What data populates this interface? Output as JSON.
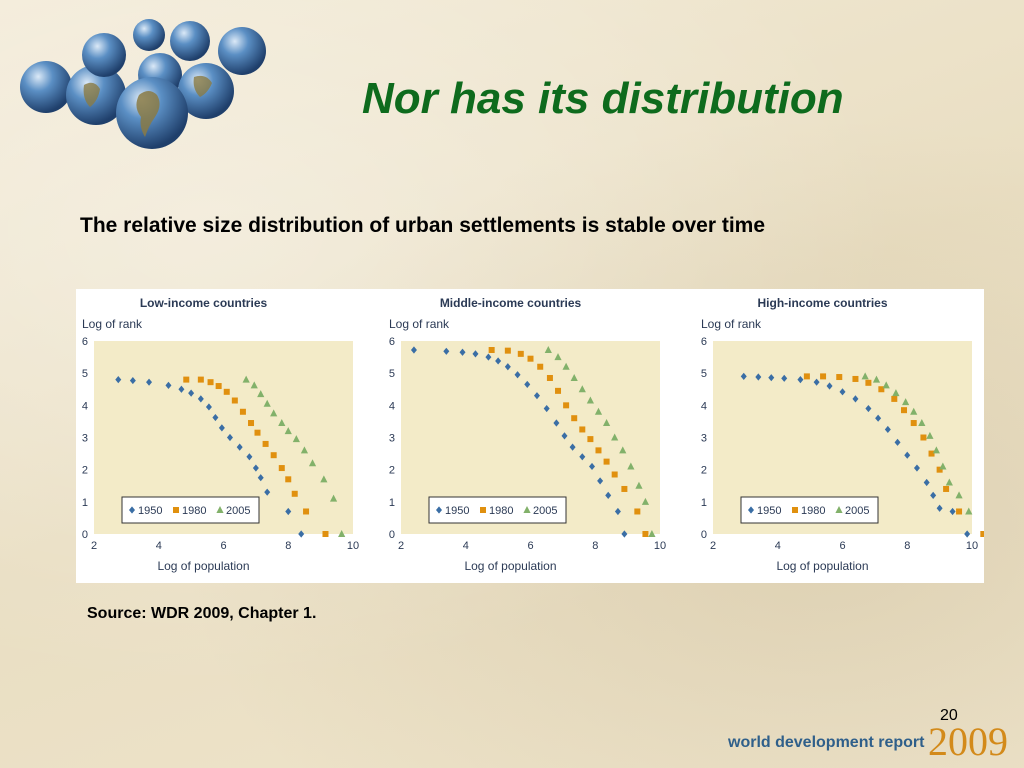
{
  "slide": {
    "title": "Nor has its distribution",
    "subtitle": "The relative size distribution of urban settlements is stable over time",
    "source": "Source: WDR 2009, Chapter 1.",
    "page_number": "20",
    "footer_brand": "world development report",
    "footer_year": "2009"
  },
  "colors": {
    "title": "#0e6b1d",
    "series_1950": "#3a6ea5",
    "series_1980": "#e0900f",
    "series_2005": "#82b16a",
    "plot_bg": "#f3ebc8"
  },
  "chart_data": [
    {
      "type": "scatter",
      "title": "Low-income countries",
      "xlabel": "Log of population",
      "ylabel": "Log of rank",
      "xlim": [
        2,
        10
      ],
      "ylim": [
        0,
        6
      ],
      "xticks": [
        2,
        4,
        6,
        8,
        10
      ],
      "yticks": [
        0,
        1,
        2,
        3,
        4,
        5,
        6
      ],
      "grid": false,
      "legend": "bottom-left",
      "series": [
        {
          "name": "1950",
          "marker": "diamond",
          "color": "#3a6ea5",
          "x": [
            2.75,
            3.2,
            3.7,
            4.3,
            4.7,
            5.0,
            5.3,
            5.55,
            5.75,
            5.95,
            6.2,
            6.5,
            6.8,
            7.0,
            7.15,
            7.35,
            8.0,
            8.4
          ],
          "y": [
            4.8,
            4.77,
            4.72,
            4.62,
            4.5,
            4.38,
            4.2,
            3.95,
            3.62,
            3.3,
            3.0,
            2.7,
            2.4,
            2.05,
            1.75,
            1.3,
            0.7,
            0
          ]
        },
        {
          "name": "1980",
          "marker": "square",
          "color": "#e0900f",
          "x": [
            4.85,
            5.3,
            5.6,
            5.85,
            6.1,
            6.35,
            6.6,
            6.85,
            7.05,
            7.3,
            7.55,
            7.8,
            8.0,
            8.2,
            8.55,
            9.15
          ],
          "y": [
            4.8,
            4.8,
            4.72,
            4.6,
            4.42,
            4.15,
            3.8,
            3.45,
            3.15,
            2.8,
            2.45,
            2.05,
            1.7,
            1.25,
            0.7,
            0
          ]
        },
        {
          "name": "2005",
          "marker": "triangle",
          "color": "#82b16a",
          "x": [
            6.7,
            6.95,
            7.15,
            7.35,
            7.55,
            7.8,
            8.0,
            8.25,
            8.5,
            8.75,
            9.1,
            9.4,
            9.65
          ],
          "y": [
            4.8,
            4.62,
            4.35,
            4.05,
            3.75,
            3.45,
            3.2,
            2.95,
            2.6,
            2.2,
            1.7,
            1.1,
            0
          ]
        }
      ]
    },
    {
      "type": "scatter",
      "title": "Middle-income countries",
      "xlabel": "Log of population",
      "ylabel": "Log of rank",
      "xlim": [
        2,
        10
      ],
      "ylim": [
        0,
        6
      ],
      "xticks": [
        2,
        4,
        6,
        8,
        10
      ],
      "yticks": [
        0,
        1,
        2,
        3,
        4,
        5,
        6
      ],
      "grid": false,
      "legend": "bottom-left",
      "series": [
        {
          "name": "1950",
          "marker": "diamond",
          "color": "#3a6ea5",
          "x": [
            2.4,
            3.4,
            3.9,
            4.3,
            4.7,
            5.0,
            5.3,
            5.6,
            5.9,
            6.2,
            6.5,
            6.8,
            7.05,
            7.3,
            7.6,
            7.9,
            8.15,
            8.4,
            8.7,
            8.9
          ],
          "y": [
            5.72,
            5.68,
            5.65,
            5.6,
            5.5,
            5.38,
            5.2,
            4.95,
            4.65,
            4.3,
            3.9,
            3.45,
            3.05,
            2.7,
            2.4,
            2.1,
            1.65,
            1.2,
            0.7,
            0
          ]
        },
        {
          "name": "1980",
          "marker": "square",
          "color": "#e0900f",
          "x": [
            4.8,
            5.3,
            5.7,
            6.0,
            6.3,
            6.6,
            6.85,
            7.1,
            7.35,
            7.6,
            7.85,
            8.1,
            8.35,
            8.6,
            8.9,
            9.3,
            9.55
          ],
          "y": [
            5.72,
            5.7,
            5.6,
            5.45,
            5.2,
            4.85,
            4.45,
            4.0,
            3.6,
            3.25,
            2.95,
            2.6,
            2.25,
            1.85,
            1.4,
            0.7,
            0
          ]
        },
        {
          "name": "2005",
          "marker": "triangle",
          "color": "#82b16a",
          "x": [
            6.55,
            6.85,
            7.1,
            7.35,
            7.6,
            7.85,
            8.1,
            8.35,
            8.6,
            8.85,
            9.1,
            9.35,
            9.55,
            9.75
          ],
          "y": [
            5.72,
            5.5,
            5.2,
            4.85,
            4.5,
            4.15,
            3.8,
            3.45,
            3.0,
            2.6,
            2.1,
            1.5,
            1.0,
            0
          ]
        }
      ]
    },
    {
      "type": "scatter",
      "title": "High-income countries",
      "xlabel": "Log of population",
      "ylabel": "Log of rank",
      "xlim": [
        2,
        10
      ],
      "ylim": [
        0,
        6
      ],
      "xticks": [
        2,
        4,
        6,
        8,
        10
      ],
      "yticks": [
        0,
        1,
        2,
        3,
        4,
        5,
        6
      ],
      "grid": false,
      "legend": "bottom-left",
      "series": [
        {
          "name": "1950",
          "marker": "diamond",
          "color": "#3a6ea5",
          "x": [
            2.95,
            3.4,
            3.8,
            4.2,
            4.7,
            5.2,
            5.6,
            6.0,
            6.4,
            6.8,
            7.1,
            7.4,
            7.7,
            8.0,
            8.3,
            8.6,
            8.8,
            9.0,
            9.4,
            9.85
          ],
          "y": [
            4.9,
            4.88,
            4.86,
            4.84,
            4.8,
            4.72,
            4.6,
            4.42,
            4.2,
            3.9,
            3.6,
            3.25,
            2.85,
            2.45,
            2.05,
            1.6,
            1.2,
            0.8,
            0.7,
            0
          ]
        },
        {
          "name": "1980",
          "marker": "square",
          "color": "#e0900f",
          "x": [
            4.9,
            5.4,
            5.9,
            6.4,
            6.8,
            7.2,
            7.6,
            7.9,
            8.2,
            8.5,
            8.75,
            9.0,
            9.2,
            9.6,
            10.35
          ],
          "y": [
            4.9,
            4.9,
            4.88,
            4.82,
            4.7,
            4.5,
            4.2,
            3.85,
            3.45,
            3.0,
            2.5,
            2.0,
            1.4,
            0.7,
            0
          ]
        },
        {
          "name": "2005",
          "marker": "triangle",
          "color": "#82b16a",
          "x": [
            6.7,
            7.05,
            7.35,
            7.65,
            7.95,
            8.2,
            8.45,
            8.7,
            8.9,
            9.1,
            9.3,
            9.6,
            9.9,
            10.5
          ],
          "y": [
            4.9,
            4.8,
            4.62,
            4.38,
            4.1,
            3.8,
            3.45,
            3.05,
            2.6,
            2.1,
            1.6,
            1.2,
            0.7,
            0
          ]
        }
      ]
    }
  ]
}
